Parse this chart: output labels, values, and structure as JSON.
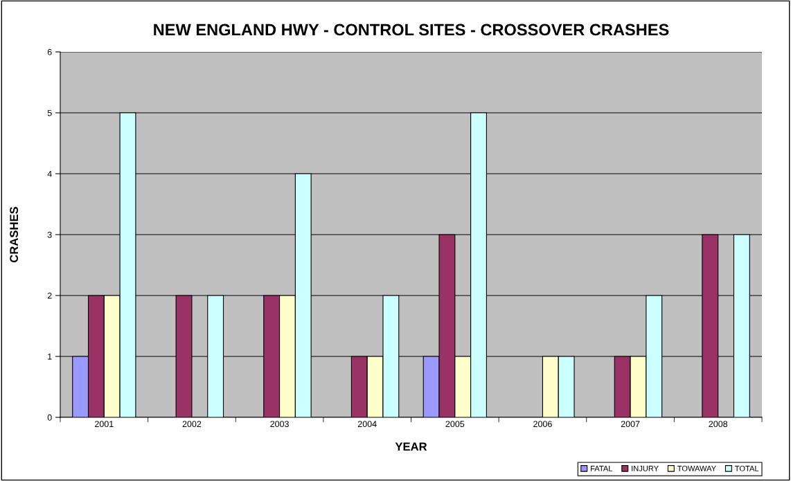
{
  "chart_data": {
    "type": "bar",
    "title": "NEW ENGLAND HWY - CONTROL SITES - CROSSOVER CRASHES",
    "xlabel": "YEAR",
    "ylabel": "CRASHES",
    "categories": [
      "2001",
      "2002",
      "2003",
      "2004",
      "2005",
      "2006",
      "2007",
      "2008"
    ],
    "series": [
      {
        "name": "FATAL",
        "color": "#9999ff",
        "values": [
          1,
          0,
          0,
          0,
          1,
          0,
          0,
          0
        ]
      },
      {
        "name": "INJURY",
        "color": "#993366",
        "values": [
          2,
          2,
          2,
          1,
          3,
          0,
          1,
          3
        ]
      },
      {
        "name": "TOWAWAY",
        "color": "#ffffcc",
        "values": [
          2,
          0,
          2,
          1,
          1,
          1,
          1,
          0
        ]
      },
      {
        "name": "TOTAL",
        "color": "#ccffff",
        "values": [
          5,
          2,
          4,
          2,
          5,
          1,
          2,
          3
        ]
      }
    ],
    "ylim": [
      0,
      6
    ],
    "yticks": [
      0,
      1,
      2,
      3,
      4,
      5,
      6
    ],
    "grid": "y",
    "legend": "bottom right"
  }
}
